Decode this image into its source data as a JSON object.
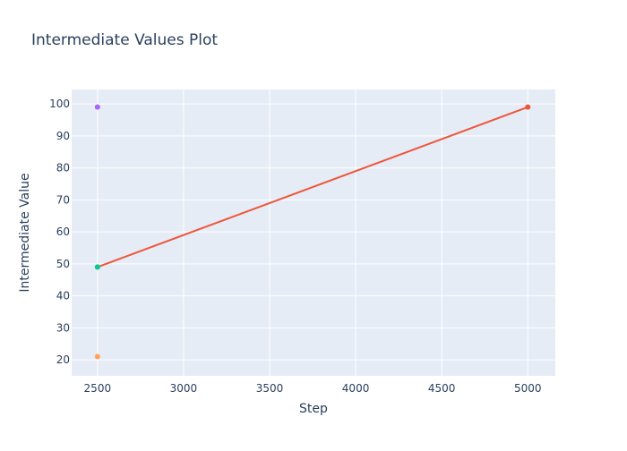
{
  "chart_data": {
    "type": "line",
    "title": "Intermediate Values Plot",
    "xlabel": "Step",
    "ylabel": "Intermediate Value",
    "xlim": [
      2350,
      5160
    ],
    "ylim": [
      15,
      104.5
    ],
    "xticks": [
      2500,
      3000,
      3500,
      4000,
      4500,
      5000
    ],
    "yticks": [
      20,
      30,
      40,
      50,
      60,
      70,
      80,
      90,
      100
    ],
    "grid": true,
    "legend": "none",
    "colors": {
      "plot_bg": "#e5ecf6",
      "grid": "#ffffff",
      "text": "#2a3f5f"
    },
    "series": [
      {
        "color": "#ab63fa",
        "mode": "markers",
        "x": [
          2500
        ],
        "y": [
          99
        ]
      },
      {
        "color": "#ef553b",
        "mode": "lines+markers",
        "x": [
          2500,
          5000
        ],
        "y": [
          49,
          99
        ]
      },
      {
        "color": "#00cc96",
        "mode": "markers",
        "x": [
          2500
        ],
        "y": [
          49
        ]
      },
      {
        "color": "#ffa15a",
        "mode": "markers",
        "x": [
          2500
        ],
        "y": [
          21
        ]
      }
    ]
  }
}
